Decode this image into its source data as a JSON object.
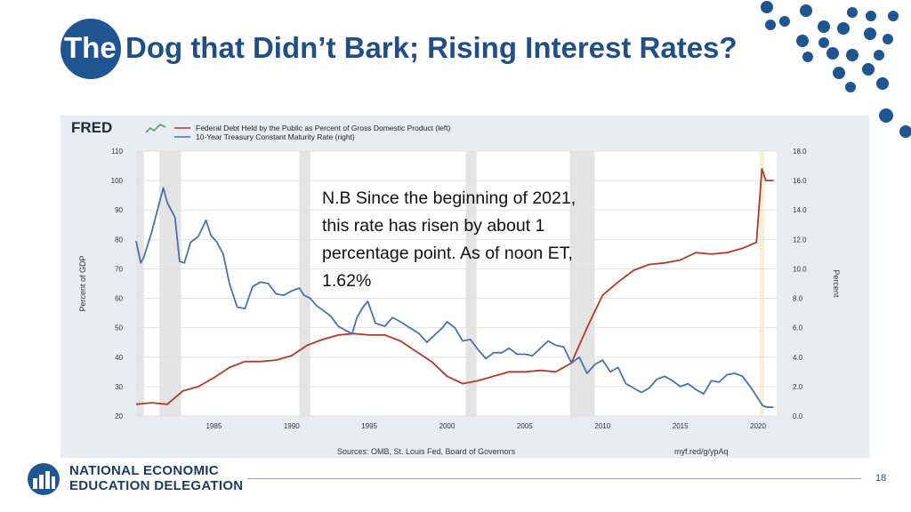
{
  "slide": {
    "title_prefix": "The",
    "title_rest": "Dog that Didn’t Bark; Rising Interest Rates?",
    "note": "N.B Since the beginning of 2021, this rate has risen by about 1 percentage point. As of noon ET, 1.62%",
    "page_number": "18",
    "org_line1": "NATIONAL ECONOMIC",
    "org_line2": "EDUCATION DELEGATION",
    "colors": {
      "title_blue": "#1f4f85",
      "circle_blue": "#1f5591",
      "dot_blue": "#1f5591"
    },
    "icons": [
      "need-logo-icon",
      "decorative-dots-icon",
      "fred-logo-icon"
    ]
  },
  "chart_data": {
    "type": "line",
    "source_logo": "FRED",
    "sources_text": "Sources: OMB, St. Louis Fed, Board of Governors",
    "url_text": "myf.red/g/ypAq",
    "ylabel_left": "Percent of GDP",
    "ylabel_right": "Percent",
    "ylim_left": [
      20,
      110
    ],
    "ylim_right": [
      0,
      18
    ],
    "yticks_left": [
      "20",
      "30",
      "40",
      "50",
      "60",
      "70",
      "80",
      "90",
      "100",
      "110"
    ],
    "yticks_right": [
      "0.0",
      "2.0",
      "4.0",
      "6.0",
      "8.0",
      "10.0",
      "12.0",
      "14.0",
      "16.0",
      "18.0"
    ],
    "xticks": [
      "1985",
      "1990",
      "1995",
      "2000",
      "2005",
      "2010",
      "2015",
      "2020"
    ],
    "xlim": [
      1980.0,
      2021.2
    ],
    "grid": true,
    "legend_position": "top-left",
    "recessions": [
      [
        1980.0,
        1980.5
      ],
      [
        1981.5,
        1982.9
      ],
      [
        1990.5,
        1991.2
      ],
      [
        2001.2,
        2001.9
      ],
      [
        2007.9,
        2009.5
      ],
      [
        2020.1,
        2020.4
      ]
    ],
    "series": [
      {
        "name": "Federal Debt Held by the Public as Percent of Gross Domestic Product (left)",
        "axis": "left",
        "color": "#b03a2e",
        "x": [
          1980,
          1981,
          1982,
          1983,
          1984,
          1985,
          1986,
          1987,
          1988,
          1989,
          1990,
          1991,
          1992,
          1993,
          1994,
          1995,
          1996,
          1997,
          1998,
          1999,
          2000,
          2001,
          2002,
          2003,
          2004,
          2005,
          2006,
          2007,
          2008,
          2009,
          2010,
          2011,
          2012,
          2013,
          2014,
          2015,
          2016,
          2017,
          2018,
          2019,
          2019.9,
          2020.25,
          2020.5,
          2021
        ],
        "y": [
          24,
          24.5,
          24,
          28.5,
          30,
          33,
          36.5,
          38.5,
          38.5,
          39,
          40.5,
          44,
          46,
          47.5,
          48,
          47.5,
          47.5,
          45.5,
          42,
          38.5,
          33.5,
          31,
          32,
          33.5,
          35,
          35,
          35.5,
          35,
          38,
          50,
          61,
          65.5,
          69.5,
          71.5,
          72,
          73,
          75.5,
          75,
          75.5,
          77,
          79,
          104,
          100,
          100
        ]
      },
      {
        "name": "10-Year Treasury Constant Maturity Rate (right)",
        "axis": "right",
        "color": "#4a72a8",
        "x": [
          1980,
          1980.3,
          1980.5,
          1981,
          1981.5,
          1981.75,
          1982,
          1982.5,
          1982.8,
          1983.1,
          1983.5,
          1984,
          1984.5,
          1984.8,
          1985.2,
          1985.6,
          1986,
          1986.5,
          1987,
          1987.5,
          1988,
          1988.5,
          1989,
          1989.5,
          1990,
          1990.5,
          1990.8,
          1991.2,
          1991.6,
          1992,
          1992.5,
          1993,
          1993.5,
          1993.9,
          1994.2,
          1994.6,
          1994.9,
          1995.4,
          1996,
          1996.5,
          1997,
          1997.6,
          1998.2,
          1998.7,
          1999.2,
          1999.7,
          2000,
          2000.5,
          2001,
          2001.5,
          2002,
          2002.5,
          2003,
          2003.5,
          2004,
          2004.5,
          2005,
          2005.5,
          2006,
          2006.5,
          2007,
          2007.5,
          2008,
          2008.5,
          2009,
          2009.5,
          2010,
          2010.5,
          2011,
          2011.5,
          2012,
          2012.5,
          2013,
          2013.5,
          2014,
          2014.5,
          2015,
          2015.5,
          2016,
          2016.5,
          2017,
          2017.5,
          2018,
          2018.5,
          2019,
          2019.5,
          2020,
          2020.3,
          2020.6,
          2021
        ],
        "y": [
          11.9,
          10.4,
          10.8,
          12.5,
          14.5,
          15.5,
          14.5,
          13.5,
          10.5,
          10.4,
          11.8,
          12.2,
          13.3,
          12.3,
          11.8,
          11,
          9,
          7.4,
          7.3,
          8.8,
          9.1,
          9,
          8.3,
          8.2,
          8.5,
          8.7,
          8.2,
          8.0,
          7.5,
          7.2,
          6.8,
          6.1,
          5.8,
          5.6,
          6.7,
          7.4,
          7.8,
          6.3,
          6.1,
          6.7,
          6.4,
          6.0,
          5.6,
          5.0,
          5.5,
          6.0,
          6.4,
          6.0,
          5.1,
          5.2,
          4.5,
          3.9,
          4.3,
          4.3,
          4.6,
          4.2,
          4.2,
          4.1,
          4.6,
          5.1,
          4.8,
          4.7,
          3.6,
          4.0,
          2.9,
          3.5,
          3.8,
          3.0,
          3.3,
          2.2,
          1.9,
          1.6,
          1.9,
          2.5,
          2.7,
          2.4,
          2.0,
          2.2,
          1.8,
          1.5,
          2.4,
          2.3,
          2.8,
          2.9,
          2.7,
          2.0,
          1.2,
          0.7,
          0.6,
          0.6
        ]
      }
    ]
  }
}
